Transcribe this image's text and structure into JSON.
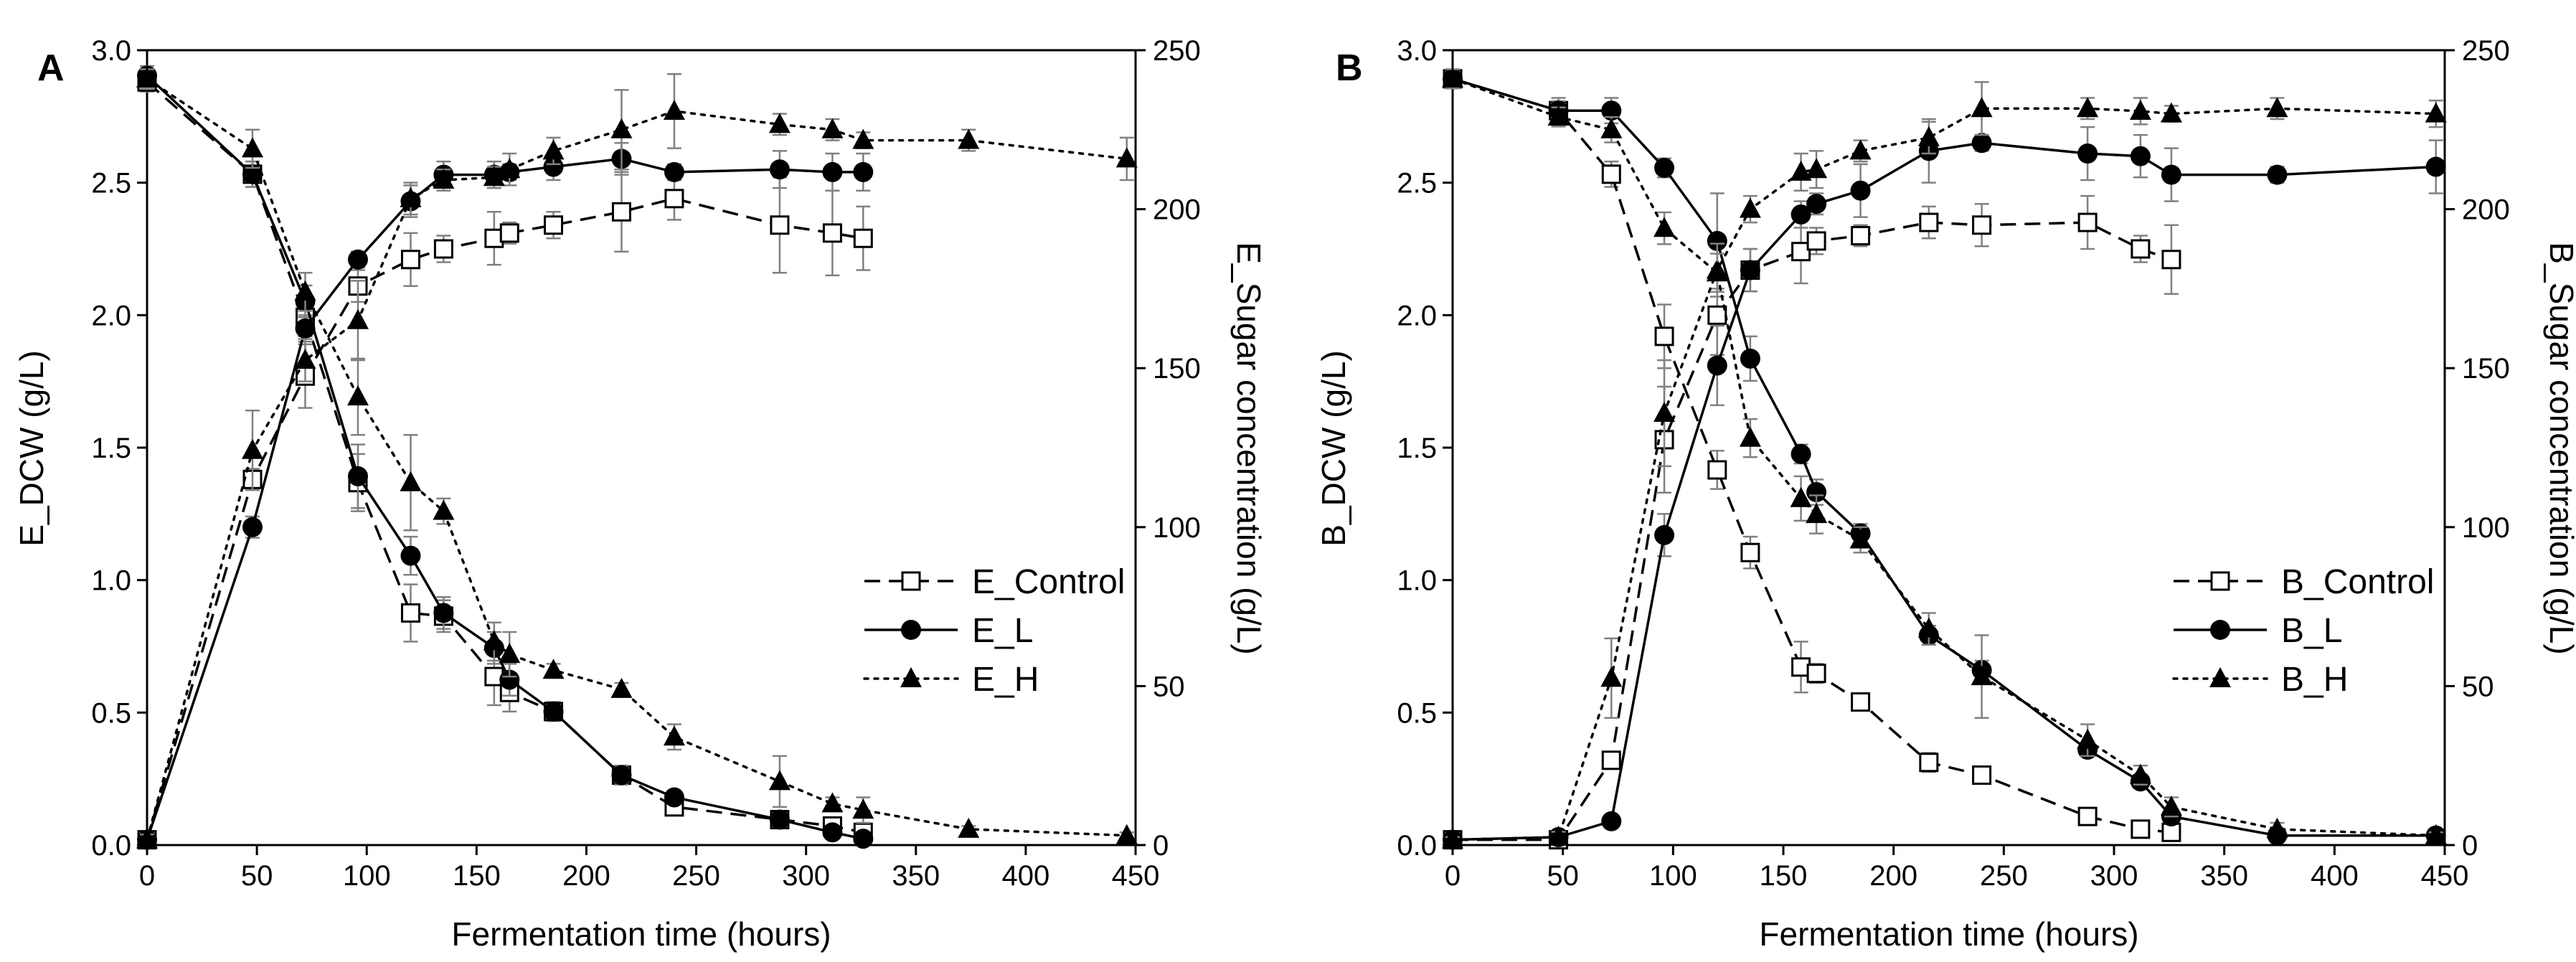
{
  "figure": {
    "background": "#ffffff"
  },
  "chart_data": [
    {
      "type": "line",
      "panel_label": "A",
      "xlabel": "Fermentation time (hours)",
      "ylabel_left": "E_DCW (g/L)",
      "ylabel_right": "E_Sugar concentration (g/L)",
      "xlim": [
        0,
        450
      ],
      "ylim_left": [
        0,
        3.0
      ],
      "ylim_right": [
        0,
        250
      ],
      "xticks": [
        "0",
        "50",
        "100",
        "150",
        "200",
        "250",
        "300",
        "350",
        "400",
        "450"
      ],
      "yticks_left": [
        "0.0",
        "0.5",
        "1.0",
        "1.5",
        "2.0",
        "2.5",
        "3.0"
      ],
      "yticks_right": [
        "0",
        "50",
        "100",
        "150",
        "200",
        "250"
      ],
      "legend_position": "middle-right",
      "series": [
        {
          "name": "E_Control",
          "marker": "open-square",
          "dash": "dashed",
          "axis": "left",
          "curve": "DCW",
          "x": [
            0,
            48,
            72,
            96,
            120,
            135,
            158,
            165,
            185,
            216,
            240,
            288,
            312,
            326
          ],
          "y": [
            0.02,
            1.38,
            1.77,
            2.11,
            2.21,
            2.25,
            2.29,
            2.31,
            2.34,
            2.39,
            2.44,
            2.34,
            2.31,
            2.29
          ],
          "err": [
            0.02,
            0.04,
            0.12,
            0.06,
            0.1,
            0.05,
            0.1,
            0.04,
            0.05,
            0.15,
            0.08,
            0.18,
            0.16,
            0.12
          ]
        },
        {
          "name": "E_Control",
          "marker": "open-square",
          "dash": "dashed",
          "axis": "right",
          "curve": "Sugar",
          "x": [
            0,
            48,
            72,
            96,
            120,
            135,
            158,
            165,
            185,
            216,
            240,
            288,
            312,
            326
          ],
          "y": [
            240,
            211,
            166,
            114,
            73,
            72,
            53,
            48,
            42,
            22,
            12,
            8,
            6,
            4
          ],
          "err": [
            3,
            4,
            6,
            9,
            9,
            5,
            9,
            6,
            3,
            3,
            2,
            2,
            2,
            2
          ]
        },
        {
          "name": "E_L",
          "marker": "filled-circle",
          "dash": "solid",
          "axis": "left",
          "curve": "DCW",
          "x": [
            0,
            48,
            72,
            96,
            120,
            135,
            158,
            165,
            185,
            216,
            240,
            288,
            312,
            326
          ],
          "y": [
            0.02,
            1.2,
            1.95,
            2.21,
            2.43,
            2.53,
            2.53,
            2.54,
            2.56,
            2.59,
            2.54,
            2.55,
            2.54,
            2.54
          ],
          "err": [
            0.02,
            0.04,
            0.05,
            0.03,
            0.06,
            0.05,
            0.05,
            0.03,
            0.05,
            0.06,
            0.03,
            0.07,
            0.07,
            0.07
          ]
        },
        {
          "name": "E_L",
          "marker": "filled-circle",
          "dash": "solid",
          "axis": "right",
          "curve": "Sugar",
          "x": [
            0,
            48,
            72,
            96,
            120,
            135,
            158,
            165,
            185,
            216,
            240,
            288,
            312,
            326
          ],
          "y": [
            242,
            211,
            171,
            116,
            91,
            73,
            62,
            52,
            42,
            22,
            15,
            8,
            4,
            2
          ],
          "err": [
            3,
            4,
            5,
            10,
            6,
            5,
            5,
            5,
            2,
            3,
            2,
            2,
            2,
            2
          ]
        },
        {
          "name": "E_H",
          "marker": "filled-triangle",
          "dash": "dotted",
          "axis": "left",
          "curve": "DCW",
          "x": [
            0,
            48,
            72,
            96,
            120,
            135,
            158,
            165,
            185,
            216,
            240,
            288,
            312,
            326,
            374,
            446
          ],
          "y": [
            0.02,
            1.49,
            1.83,
            1.98,
            2.44,
            2.51,
            2.52,
            2.55,
            2.62,
            2.7,
            2.77,
            2.72,
            2.7,
            2.66,
            2.66,
            2.59
          ],
          "err": [
            0.02,
            0.15,
            0.08,
            0.15,
            0.06,
            0.04,
            0.04,
            0.06,
            0.05,
            0.15,
            0.14,
            0.04,
            0.04,
            0.03,
            0.04,
            0.08
          ]
        },
        {
          "name": "E_H",
          "marker": "filled-triangle",
          "dash": "dotted",
          "axis": "right",
          "curve": "Sugar",
          "x": [
            0,
            48,
            72,
            96,
            120,
            135,
            158,
            165,
            185,
            216,
            240,
            288,
            312,
            326,
            374,
            446
          ],
          "y": [
            241,
            219,
            174,
            141,
            114,
            105,
            64,
            60,
            55,
            49,
            34,
            20,
            13,
            11,
            5,
            3
          ],
          "err": [
            3,
            6,
            6,
            12,
            15,
            4,
            6,
            7,
            2,
            2,
            4,
            8,
            2,
            4,
            1,
            1
          ]
        }
      ]
    },
    {
      "type": "line",
      "panel_label": "B",
      "xlabel": "Fermentation time (hours)",
      "ylabel_left": "B_DCW (g/L)",
      "ylabel_right": "B_Sugar concentration (g/L)",
      "xlim": [
        0,
        450
      ],
      "ylim_left": [
        0,
        3.0
      ],
      "ylim_right": [
        0,
        250
      ],
      "xticks": [
        "0",
        "50",
        "100",
        "150",
        "200",
        "250",
        "300",
        "350",
        "400",
        "450"
      ],
      "yticks_left": [
        "0.0",
        "0.5",
        "1.0",
        "1.5",
        "2.0",
        "2.5",
        "3.0"
      ],
      "yticks_right": [
        "0",
        "50",
        "100",
        "150",
        "200",
        "250"
      ],
      "legend_position": "middle-right",
      "series": [
        {
          "name": "B_Control",
          "marker": "open-square",
          "dash": "dashed",
          "axis": "left",
          "curve": "DCW",
          "x": [
            0,
            48,
            72,
            96,
            120,
            135,
            158,
            165,
            185,
            216,
            240,
            288,
            312,
            326
          ],
          "y": [
            0.02,
            0.02,
            0.32,
            1.53,
            2.0,
            2.17,
            2.24,
            2.28,
            2.3,
            2.35,
            2.34,
            2.35,
            2.25,
            2.21
          ],
          "err": [
            0.02,
            0.02,
            0.03,
            0.2,
            0.15,
            0.08,
            0.12,
            0.05,
            0.04,
            0.06,
            0.08,
            0.1,
            0.05,
            0.13
          ]
        },
        {
          "name": "B_Control",
          "marker": "open-square",
          "dash": "dashed",
          "axis": "right",
          "curve": "Sugar",
          "x": [
            0,
            48,
            72,
            96,
            120,
            135,
            158,
            165,
            185,
            216,
            240,
            288,
            312,
            326
          ],
          "y": [
            241,
            231,
            211,
            160,
            118,
            92,
            56,
            54,
            45,
            26,
            22,
            9,
            5,
            4
          ],
          "err": [
            3,
            4,
            4,
            10,
            6,
            5,
            8,
            3,
            2,
            3,
            2,
            2,
            1,
            1
          ]
        },
        {
          "name": "B_L",
          "marker": "filled-circle",
          "dash": "solid",
          "axis": "left",
          "curve": "DCW",
          "x": [
            0,
            48,
            72,
            96,
            120,
            135,
            158,
            165,
            185,
            216,
            240,
            288,
            312,
            326,
            374,
            446
          ],
          "y": [
            0.02,
            0.03,
            0.09,
            1.17,
            1.81,
            2.17,
            2.38,
            2.42,
            2.47,
            2.62,
            2.65,
            2.61,
            2.6,
            2.53,
            2.53,
            2.56
          ],
          "err": [
            0.01,
            0.02,
            0.02,
            0.08,
            0.15,
            0.08,
            0.05,
            0.04,
            0.1,
            0.12,
            0.03,
            0.1,
            0.08,
            0.1,
            0.03,
            0.1
          ]
        },
        {
          "name": "B_L",
          "marker": "filled-circle",
          "dash": "solid",
          "axis": "right",
          "curve": "Sugar",
          "x": [
            0,
            48,
            72,
            96,
            120,
            135,
            158,
            165,
            185,
            216,
            240,
            288,
            312,
            326,
            374,
            446
          ],
          "y": [
            241,
            231,
            231,
            213,
            190,
            153,
            123,
            111,
            98,
            66,
            55,
            30,
            20,
            9,
            3,
            3
          ],
          "err": [
            3,
            3,
            4,
            3,
            15,
            7,
            3,
            4,
            3,
            3,
            3,
            2,
            2,
            2,
            1,
            1
          ]
        },
        {
          "name": "B_H",
          "marker": "filled-triangle",
          "dash": "dotted",
          "axis": "left",
          "curve": "DCW",
          "x": [
            0,
            48,
            72,
            96,
            120,
            135,
            158,
            165,
            185,
            216,
            240,
            288,
            312,
            326,
            374,
            446
          ],
          "y": [
            0.02,
            0.03,
            0.63,
            1.63,
            2.17,
            2.4,
            2.54,
            2.55,
            2.62,
            2.67,
            2.78,
            2.78,
            2.77,
            2.76,
            2.78,
            2.76
          ],
          "err": [
            0.01,
            0.02,
            0.15,
            0.2,
            0.1,
            0.05,
            0.07,
            0.07,
            0.04,
            0.06,
            0.1,
            0.04,
            0.05,
            0.03,
            0.04,
            0.05
          ]
        },
        {
          "name": "B_H",
          "marker": "filled-triangle",
          "dash": "dotted",
          "axis": "right",
          "curve": "Sugar",
          "x": [
            0,
            48,
            72,
            96,
            120,
            135,
            158,
            165,
            185,
            216,
            240,
            288,
            312,
            326,
            374,
            446
          ],
          "y": [
            241,
            229,
            225,
            194,
            180,
            128,
            109,
            104,
            96,
            68,
            53,
            33,
            22,
            12,
            5,
            3
          ],
          "err": [
            3,
            3,
            4,
            5,
            6,
            6,
            7,
            6,
            4,
            5,
            13,
            5,
            3,
            3,
            2,
            1
          ]
        }
      ]
    }
  ]
}
